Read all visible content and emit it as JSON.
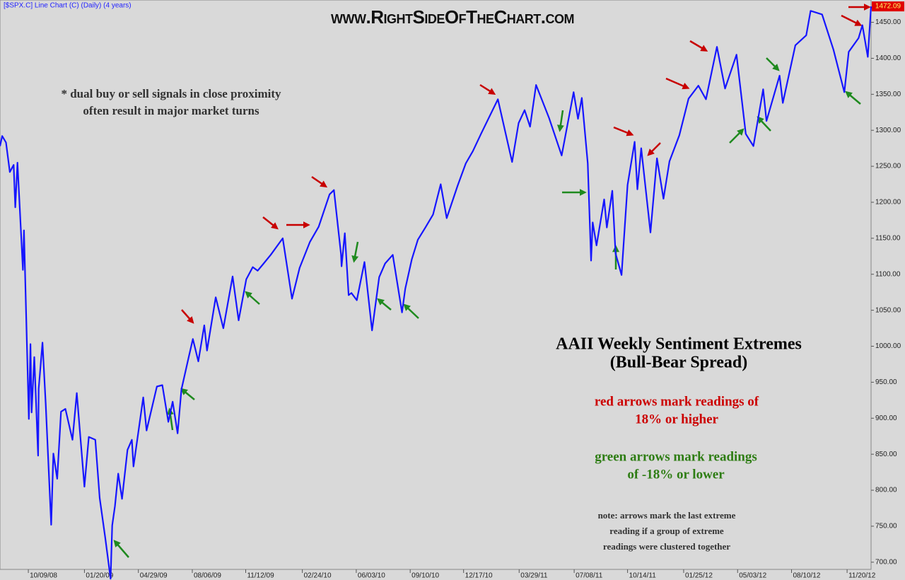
{
  "chart_data": {
    "type": "line",
    "title": "www.RightSideOfTheChart.com",
    "subtitle": "[$SPX.C] Line Chart (C) (Daily) (4 years)",
    "x": [
      "08/18/08",
      "08/22/08",
      "08/29/08",
      "09/05/08",
      "09/12/08",
      "09/15/08",
      "09/19/08",
      "09/29/08",
      "10/01/08",
      "10/10/08",
      "10/13/08",
      "10/15/08",
      "10/20/08",
      "10/27/08",
      "10/28/08",
      "11/04/08",
      "11/10/08",
      "11/20/08",
      "11/24/08",
      "12/01/08",
      "12/08/08",
      "12/16/08",
      "12/29/08",
      "01/06/09",
      "01/20/09",
      "01/28/09",
      "02/09/09",
      "02/17/09",
      "02/27/09",
      "03/09/09",
      "03/12/09",
      "03/17/09",
      "03/23/09",
      "03/30/09",
      "04/09/09",
      "04/17/09",
      "04/20/09",
      "05/08/09",
      "05/14/09",
      "06/02/09",
      "06/12/09",
      "06/23/09",
      "07/01/09",
      "07/10/09",
      "07/17/09",
      "07/31/09",
      "08/07/09",
      "08/17/09",
      "08/28/09",
      "09/02/09",
      "09/18/09",
      "10/02/09",
      "10/19/09",
      "10/30/09",
      "11/13/09",
      "11/25/09",
      "12/04/09",
      "12/14/09",
      "12/28/09",
      "01/19/10",
      "02/05/10",
      "02/19/10",
      "03/10/10",
      "03/26/10",
      "04/15/10",
      "04/23/10",
      "05/06/10",
      "05/07/10",
      "05/13/10",
      "05/20/10",
      "05/25/10",
      "06/04/10",
      "06/18/10",
      "07/02/10",
      "07/15/10",
      "07/26/10",
      "08/09/10",
      "08/26/10",
      "09/01/10",
      "09/13/10",
      "09/24/10",
      "10/08/10",
      "10/22/10",
      "11/05/10",
      "11/16/10",
      "12/06/10",
      "12/21/10",
      "01/03/11",
      "01/18/11",
      "02/18/11",
      "03/16/11",
      "03/28/11",
      "04/08/11",
      "04/18/11",
      "04/29/11",
      "05/23/11",
      "06/15/11",
      "07/07/11",
      "07/15/11",
      "07/22/11",
      "08/02/11",
      "08/08/11",
      "08/11/11",
      "08/18/11",
      "08/26/11",
      "09/01/11",
      "09/06/11",
      "09/16/11",
      "09/22/11",
      "10/03/11",
      "10/14/11",
      "10/27/11",
      "11/01/11",
      "11/08/11",
      "11/25/11",
      "12/07/11",
      "12/19/11",
      "12/30/11",
      "01/17/12",
      "02/03/12",
      "02/21/12",
      "03/06/12",
      "03/26/12",
      "04/10/12",
      "05/01/12",
      "05/18/12",
      "06/01/12",
      "06/19/12",
      "06/25/12",
      "07/19/12",
      "07/25/12",
      "08/17/12",
      "09/06/12",
      "09/14/12",
      "10/05/12",
      "10/26/12",
      "11/15/12",
      "11/23/12",
      "12/11/12",
      "12/18/12",
      "12/28/12",
      "01/03/13"
    ],
    "series": [
      {
        "name": "$SPX.C",
        "color": "#1616ff",
        "values": [
          1278,
          1292,
          1283,
          1242,
          1252,
          1193,
          1255,
          1106,
          1161,
          899,
          1003,
          908,
          985,
          848,
          941,
          1005,
          919,
          752,
          851,
          816,
          909,
          913,
          870,
          935,
          805,
          874,
          870,
          789,
          735,
          677,
          751,
          778,
          823,
          788,
          856,
          870,
          833,
          929,
          883,
          944,
          946,
          895,
          923,
          879,
          940,
          987,
          1010,
          979,
          1029,
          994,
          1068,
          1025,
          1097,
          1036,
          1093,
          1110,
          1105,
          1114,
          1127,
          1150,
          1066,
          1109,
          1145,
          1166,
          1211,
          1217,
          1128,
          1111,
          1157,
          1071,
          1074,
          1064,
          1117,
          1022,
          1096,
          1115,
          1127,
          1047,
          1080,
          1121,
          1148,
          1165,
          1183,
          1225,
          1178,
          1223,
          1254,
          1271,
          1295,
          1343,
          1256,
          1310,
          1328,
          1305,
          1363,
          1317,
          1265,
          1353,
          1316,
          1345,
          1254,
          1119,
          1172,
          1140,
          1176,
          1204,
          1165,
          1216,
          1129,
          1099,
          1224,
          1284,
          1218,
          1275,
          1158,
          1261,
          1205,
          1257,
          1293,
          1344,
          1362,
          1343,
          1416,
          1358,
          1405,
          1295,
          1278,
          1357,
          1313,
          1376,
          1338,
          1418,
          1432,
          1466,
          1461,
          1412,
          1353,
          1409,
          1428,
          1446,
          1402,
          1472.09
        ]
      }
    ],
    "xlim": [
      "08/18/08",
      "01/03/13"
    ],
    "xticks": [
      "10/09/08",
      "01/20/09",
      "04/29/09",
      "08/06/09",
      "11/12/09",
      "02/24/10",
      "06/03/10",
      "09/10/10",
      "12/17/10",
      "03/29/11",
      "07/08/11",
      "10/14/11",
      "01/25/12",
      "05/03/12",
      "08/10/12",
      "11/20/12"
    ],
    "ylim": [
      690,
      1481
    ],
    "yticks": [
      {
        "value": 700,
        "label": "700.00"
      },
      {
        "value": 750,
        "label": "750.00"
      },
      {
        "value": 800,
        "label": "800.00"
      },
      {
        "value": 850,
        "label": "850.00"
      },
      {
        "value": 900,
        "label": "900.00"
      },
      {
        "value": 950,
        "label": "950.00"
      },
      {
        "value": 1000,
        "label": "1000.00"
      },
      {
        "value": 1050,
        "label": "1050.00"
      },
      {
        "value": 1100,
        "label": "1100.00"
      },
      {
        "value": 1150,
        "label": "1150.00"
      },
      {
        "value": 1200,
        "label": "1200.00"
      },
      {
        "value": 1250,
        "label": "1250.00"
      },
      {
        "value": 1300,
        "label": "1300.00"
      },
      {
        "value": 1350,
        "label": "1350.00"
      },
      {
        "value": 1400,
        "label": "1400.00"
      },
      {
        "value": 1450,
        "label": "1450.00"
      }
    ],
    "grid": false,
    "annotations": [
      {
        "lines": [
          "* dual buy or sell signals in close proximity",
          "often result in major market turns"
        ],
        "color": "#333333"
      },
      {
        "lines": [
          "AAII Weekly Sentiment Extremes",
          "(Bull-Bear Spread)"
        ],
        "color": "#000000"
      },
      {
        "lines": [
          "red arrows mark readings of",
          "18% or higher"
        ],
        "color": "#cc0000"
      },
      {
        "lines": [
          "green arrows mark readings",
          "of -18% or lower"
        ],
        "color": "#2e7d14"
      },
      {
        "lines": [
          "note: arrows mark the last extreme",
          "reading if a group of extreme",
          "readings were clustered together"
        ],
        "color": "#333333"
      }
    ]
  }
}
